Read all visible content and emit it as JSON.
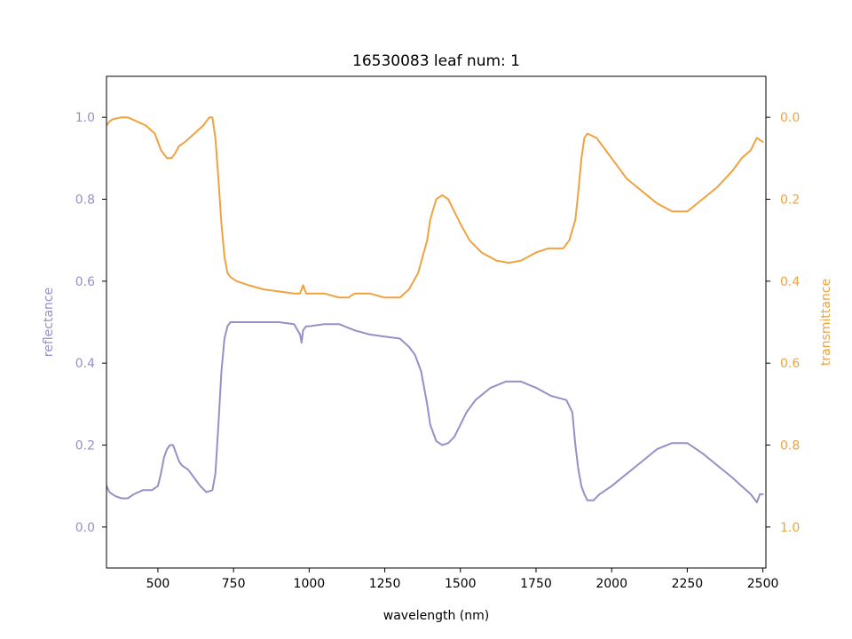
{
  "chart_data": {
    "type": "line",
    "title": "16530083 leaf num: 1",
    "xlabel": "wavelength (nm)",
    "xlim": [
      330,
      2510
    ],
    "x_ticks": [
      500,
      750,
      1000,
      1250,
      1500,
      1750,
      2000,
      2250,
      2500
    ],
    "grid": false,
    "left_axis": {
      "label": "reflectance",
      "color": "#9590c6",
      "ylim": [
        -0.1,
        1.1
      ],
      "ticks": [
        0.0,
        0.2,
        0.4,
        0.6,
        0.8,
        1.0
      ],
      "tick_labels": [
        "0.0",
        "0.2",
        "0.4",
        "0.6",
        "0.8",
        "1.0"
      ]
    },
    "right_axis": {
      "label": "transmittance",
      "color": "#f0a240",
      "ylim": [
        1.1,
        -0.1
      ],
      "inverted": true,
      "ticks": [
        0.0,
        0.2,
        0.4,
        0.6,
        0.8,
        1.0
      ],
      "tick_labels": [
        "0.0",
        "0.2",
        "0.4",
        "0.6",
        "0.8",
        "1.0"
      ]
    },
    "series": [
      {
        "axis": "left",
        "color": "#9590c6",
        "x": [
          330,
          340,
          360,
          380,
          400,
          420,
          450,
          480,
          500,
          510,
          520,
          530,
          540,
          550,
          560,
          570,
          580,
          600,
          620,
          640,
          660,
          680,
          690,
          700,
          710,
          720,
          730,
          740,
          750,
          760,
          800,
          850,
          900,
          950,
          970,
          975,
          980,
          990,
          1000,
          1050,
          1100,
          1150,
          1200,
          1250,
          1300,
          1330,
          1350,
          1370,
          1390,
          1400,
          1420,
          1440,
          1460,
          1480,
          1500,
          1520,
          1550,
          1600,
          1650,
          1700,
          1750,
          1800,
          1850,
          1870,
          1880,
          1890,
          1900,
          1910,
          1920,
          1940,
          1960,
          2000,
          2050,
          2100,
          2150,
          2200,
          2250,
          2300,
          2350,
          2400,
          2430,
          2460,
          2480,
          2490,
          2500
        ],
        "y": [
          0.1,
          0.085,
          0.075,
          0.07,
          0.07,
          0.08,
          0.09,
          0.09,
          0.1,
          0.13,
          0.17,
          0.19,
          0.2,
          0.2,
          0.18,
          0.16,
          0.15,
          0.14,
          0.12,
          0.1,
          0.085,
          0.09,
          0.13,
          0.25,
          0.38,
          0.46,
          0.49,
          0.5,
          0.5,
          0.5,
          0.5,
          0.5,
          0.5,
          0.495,
          0.47,
          0.45,
          0.48,
          0.49,
          0.49,
          0.495,
          0.495,
          0.48,
          0.47,
          0.465,
          0.46,
          0.44,
          0.42,
          0.38,
          0.3,
          0.25,
          0.21,
          0.2,
          0.205,
          0.22,
          0.25,
          0.28,
          0.31,
          0.34,
          0.355,
          0.355,
          0.34,
          0.32,
          0.31,
          0.28,
          0.2,
          0.14,
          0.1,
          0.08,
          0.065,
          0.065,
          0.08,
          0.1,
          0.13,
          0.16,
          0.19,
          0.205,
          0.205,
          0.18,
          0.15,
          0.12,
          0.1,
          0.08,
          0.06,
          0.08,
          0.08
        ]
      },
      {
        "axis": "right",
        "color": "#f0a240",
        "x": [
          330,
          340,
          350,
          380,
          400,
          430,
          460,
          490,
          510,
          530,
          545,
          555,
          570,
          590,
          620,
          650,
          670,
          680,
          690,
          700,
          710,
          720,
          730,
          740,
          760,
          800,
          850,
          900,
          950,
          970,
          980,
          990,
          1000,
          1050,
          1100,
          1130,
          1150,
          1200,
          1250,
          1300,
          1330,
          1360,
          1390,
          1400,
          1420,
          1440,
          1460,
          1480,
          1500,
          1530,
          1570,
          1620,
          1660,
          1700,
          1750,
          1790,
          1810,
          1840,
          1860,
          1880,
          1890,
          1900,
          1910,
          1920,
          1950,
          1980,
          2000,
          2050,
          2100,
          2150,
          2200,
          2250,
          2300,
          2350,
          2400,
          2430,
          2460,
          2480,
          2500
        ],
        "y": [
          0.02,
          0.01,
          0.005,
          0.0,
          0.0,
          0.01,
          0.02,
          0.04,
          0.08,
          0.1,
          0.1,
          0.09,
          0.07,
          0.06,
          0.04,
          0.02,
          0.0,
          0.0,
          0.05,
          0.15,
          0.26,
          0.34,
          0.38,
          0.39,
          0.4,
          0.41,
          0.42,
          0.425,
          0.43,
          0.43,
          0.41,
          0.43,
          0.43,
          0.43,
          0.44,
          0.44,
          0.43,
          0.43,
          0.44,
          0.44,
          0.42,
          0.38,
          0.3,
          0.25,
          0.2,
          0.19,
          0.2,
          0.23,
          0.26,
          0.3,
          0.33,
          0.35,
          0.355,
          0.35,
          0.33,
          0.32,
          0.32,
          0.32,
          0.3,
          0.25,
          0.18,
          0.1,
          0.05,
          0.04,
          0.05,
          0.08,
          0.1,
          0.15,
          0.18,
          0.21,
          0.23,
          0.23,
          0.2,
          0.17,
          0.13,
          0.1,
          0.08,
          0.05,
          0.06
        ]
      }
    ]
  }
}
